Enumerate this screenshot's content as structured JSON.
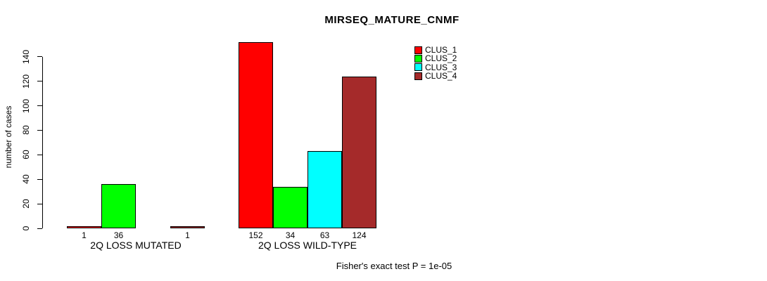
{
  "title": "MIRSEQ_MATURE_CNMF",
  "y_axis_label": "number of cases",
  "footer": "Fisher's exact test P = 1e-05",
  "legend": {
    "items": [
      {
        "label": "CLUS_1",
        "color": "#FF0000"
      },
      {
        "label": "CLUS_2",
        "color": "#00FF00"
      },
      {
        "label": "CLUS_3",
        "color": "#00FFFF"
      },
      {
        "label": "CLUS_4",
        "color": "#A52A2A"
      }
    ]
  },
  "chart_data": {
    "type": "bar",
    "title": "MIRSEQ_MATURE_CNMF",
    "xlabel": "",
    "ylabel": "number of cases",
    "ylim": [
      0,
      152
    ],
    "yticks": [
      0,
      20,
      40,
      60,
      80,
      100,
      120,
      140
    ],
    "grid": false,
    "legend_position": "top-right",
    "categories": [
      "2Q LOSS MUTATED",
      "2Q LOSS WILD-TYPE"
    ],
    "series": [
      {
        "name": "CLUS_1",
        "color": "#FF0000",
        "values": [
          1,
          152
        ]
      },
      {
        "name": "CLUS_2",
        "color": "#00FF00",
        "values": [
          36,
          34
        ]
      },
      {
        "name": "CLUS_3",
        "color": "#00FFFF",
        "values": [
          0,
          63
        ]
      },
      {
        "name": "CLUS_4",
        "color": "#A52A2A",
        "values": [
          1,
          124
        ]
      }
    ],
    "bar_value_labels": [
      [
        "1",
        "36",
        "",
        "1"
      ],
      [
        "152",
        "34",
        "63",
        "124"
      ]
    ],
    "annotation": "Fisher's exact test P = 1e-05"
  }
}
